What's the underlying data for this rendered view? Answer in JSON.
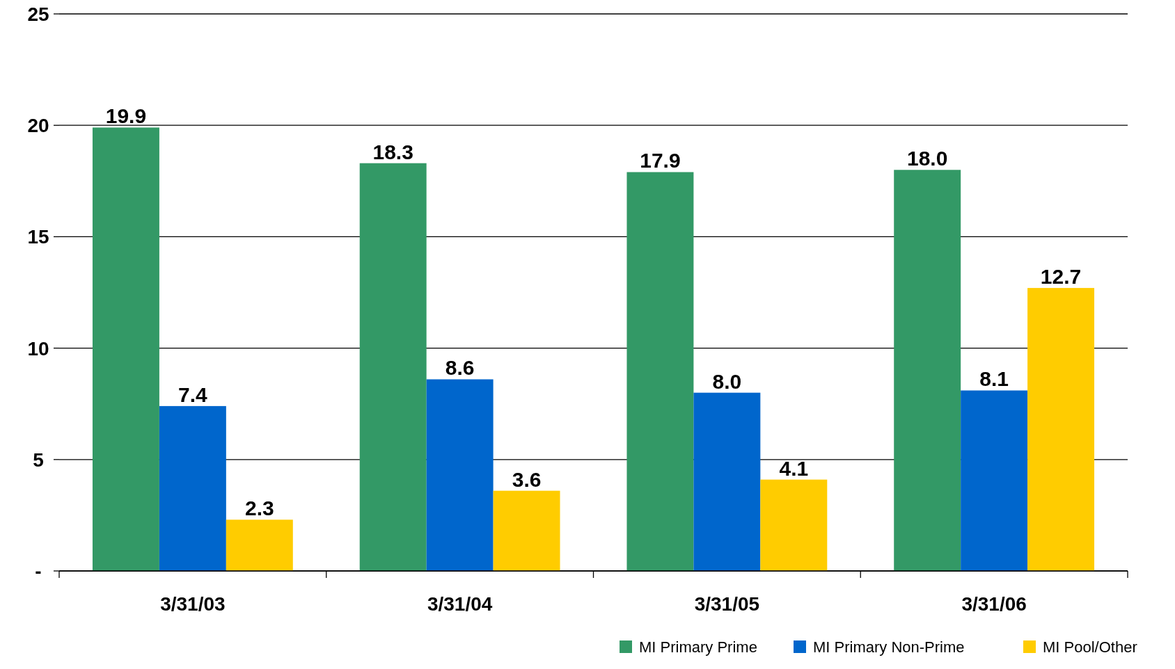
{
  "chart_data": {
    "type": "bar",
    "categories": [
      "3/31/03",
      "3/31/04",
      "3/31/05",
      "3/31/06"
    ],
    "series": [
      {
        "name": "MI Primary Prime",
        "color": "#339966",
        "values": [
          19.9,
          18.3,
          17.9,
          18.0
        ]
      },
      {
        "name": "MI Primary Non-Prime",
        "color": "#0066cc",
        "values": [
          7.4,
          8.6,
          8.0,
          8.1
        ]
      },
      {
        "name": "MI Pool/Other",
        "color": "#ffcc00",
        "values": [
          2.3,
          3.6,
          4.1,
          12.7
        ]
      }
    ],
    "value_labels": [
      [
        "19.9",
        "18.3",
        "17.9",
        "18.0"
      ],
      [
        "7.4",
        "8.6",
        "8.0",
        "8.1"
      ],
      [
        "2.3",
        "3.6",
        "4.1",
        "12.7"
      ]
    ],
    "ylim": [
      0,
      25
    ],
    "yticks": [
      {
        "value": 0,
        "label": "-"
      },
      5,
      10,
      15,
      20,
      25
    ],
    "grid": "y",
    "legend": "bottom right"
  }
}
